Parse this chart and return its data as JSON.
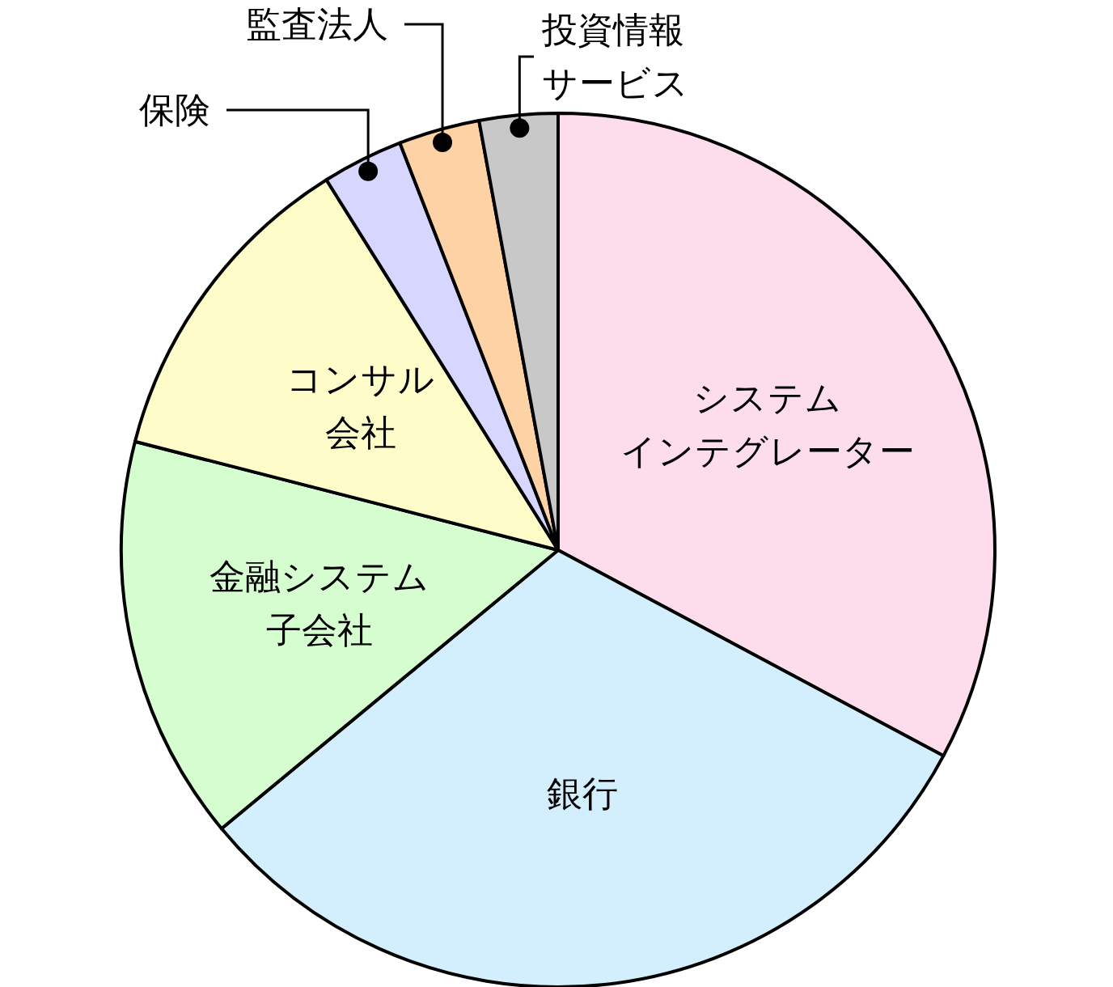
{
  "chart_data": {
    "type": "pie",
    "categories": [
      "システムインテグレーター",
      "銀行",
      "金融システム子会社",
      "コンサル会社",
      "保険",
      "監査法人",
      "投資情報サービス"
    ],
    "values": [
      32.8,
      31.2,
      15.0,
      12.1,
      3.0,
      3.0,
      2.9
    ],
    "colors": [
      "#fddcec",
      "#d3effd",
      "#d5fdd0",
      "#fefcc8",
      "#d6d6fe",
      "#fdd3a6",
      "#c8c8c8"
    ]
  }
}
